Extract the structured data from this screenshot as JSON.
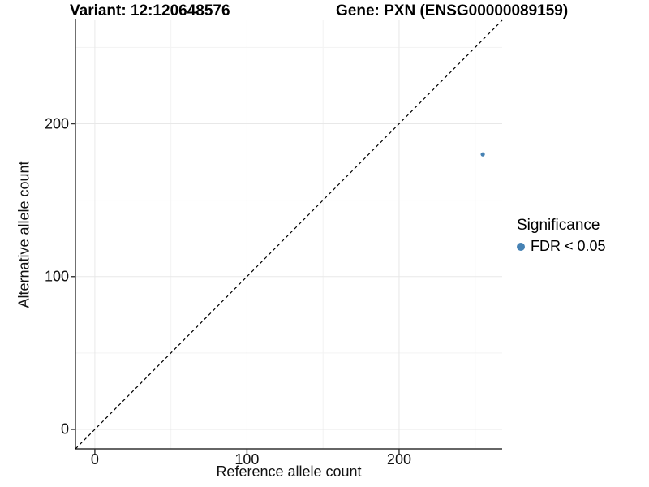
{
  "header": {
    "variant_title": "Variant: 12:120648576",
    "gene_title": "Gene: PXN (ENSG00000089159)"
  },
  "chart_data": {
    "type": "scatter",
    "xlabel": "Reference allele count",
    "ylabel": "Alternative allele count",
    "xlim": [
      -12.75,
      267.75
    ],
    "ylim": [
      -12.75,
      267.75
    ],
    "x_ticks": [
      0,
      100,
      200
    ],
    "y_ticks": [
      0,
      100,
      200
    ],
    "x_minor_ticks": [
      50,
      150,
      250
    ],
    "y_minor_ticks": [
      50,
      150,
      250
    ],
    "grid": "major and minor gridlines on, white background, axis lines left and bottom only",
    "points": [
      {
        "x": 255,
        "y": 180,
        "series": "FDR < 0.05"
      }
    ],
    "identity_line": {
      "slope": 1,
      "intercept": 0,
      "style": "dashed",
      "color": "#000000"
    },
    "colors": {
      "point": "#4682B4",
      "grid_major": "#e8e8e8",
      "grid_minor": "#f3f3f3",
      "axis": "#333333"
    },
    "legend": {
      "title": "Significance",
      "position": "right",
      "items": [
        {
          "label": "FDR < 0.05",
          "color": "#4682B4"
        }
      ]
    }
  }
}
